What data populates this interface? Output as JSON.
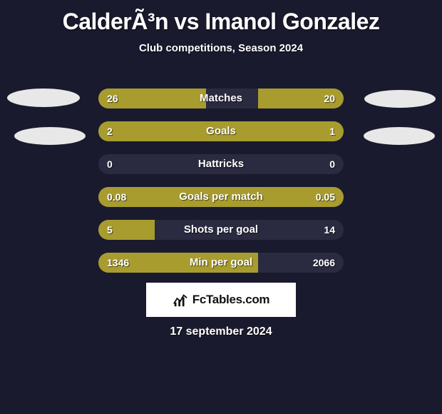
{
  "title": "CalderÃ³n vs Imanol Gonzalez",
  "subtitle": "Club competitions, Season 2024",
  "date": "17 september 2024",
  "logo_text": "FcTables.com",
  "colors": {
    "background": "#1a1a2e",
    "bar_fill": "#a89c2f",
    "bar_track": "#2a2a40",
    "oval": "#e8e8e8",
    "text": "#ffffff",
    "logo_bg": "#ffffff",
    "logo_text": "#111111"
  },
  "stats": [
    {
      "label": "Matches",
      "left_val": "26",
      "right_val": "20",
      "left_pct": 44,
      "right_pct": 35
    },
    {
      "label": "Goals",
      "left_val": "2",
      "right_val": "1",
      "left_pct": 67,
      "right_pct": 33
    },
    {
      "label": "Hattricks",
      "left_val": "0",
      "right_val": "0",
      "left_pct": 0,
      "right_pct": 0
    },
    {
      "label": "Goals per match",
      "left_val": "0.08",
      "right_val": "0.05",
      "left_pct": 62,
      "right_pct": 38
    },
    {
      "label": "Shots per goal",
      "left_val": "5",
      "right_val": "14",
      "left_pct": 23,
      "right_pct": 0
    },
    {
      "label": "Min per goal",
      "left_val": "1346",
      "right_val": "2066",
      "left_pct": 65,
      "right_pct": 0
    }
  ]
}
